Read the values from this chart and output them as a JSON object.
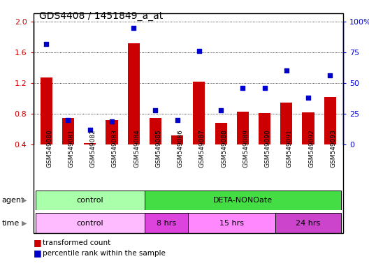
{
  "title": "GDS4408 / 1451849_a_at",
  "samples": [
    "GSM549080",
    "GSM549081",
    "GSM549082",
    "GSM549083",
    "GSM549084",
    "GSM549085",
    "GSM549086",
    "GSM549087",
    "GSM549088",
    "GSM549089",
    "GSM549090",
    "GSM549091",
    "GSM549092",
    "GSM549093"
  ],
  "bar_values": [
    1.27,
    0.75,
    0.42,
    0.72,
    1.72,
    0.75,
    0.52,
    1.22,
    0.68,
    0.83,
    0.81,
    0.95,
    0.82,
    1.02
  ],
  "dot_values": [
    82,
    20,
    12,
    19,
    95,
    28,
    20,
    76,
    28,
    46,
    46,
    60,
    38,
    56
  ],
  "ylim": [
    0.4,
    2.0
  ],
  "y2lim": [
    0,
    100
  ],
  "yticks": [
    0.4,
    0.8,
    1.2,
    1.6,
    2.0
  ],
  "y2ticks": [
    0,
    25,
    50,
    75,
    100
  ],
  "bar_color": "#cc0000",
  "dot_color": "#0000cc",
  "title_fontsize": 10,
  "agent_groups": [
    {
      "label": "control",
      "start": 0,
      "end": 5,
      "color": "#aaffaa"
    },
    {
      "label": "DETA-NONOate",
      "start": 5,
      "end": 14,
      "color": "#44dd44"
    }
  ],
  "time_groups": [
    {
      "label": "control",
      "start": 0,
      "end": 5,
      "color": "#ffbbff"
    },
    {
      "label": "8 hrs",
      "start": 5,
      "end": 7,
      "color": "#dd44dd"
    },
    {
      "label": "15 hrs",
      "start": 7,
      "end": 11,
      "color": "#ff88ff"
    },
    {
      "label": "24 hrs",
      "start": 11,
      "end": 14,
      "color": "#cc44cc"
    }
  ],
  "legend_items": [
    {
      "label": "transformed count",
      "color": "#cc0000"
    },
    {
      "label": "percentile rank within the sample",
      "color": "#0000cc"
    }
  ],
  "left_axis_color": "#cc0000",
  "right_axis_color": "#0000cc",
  "tick_bg_color": "#cccccc"
}
